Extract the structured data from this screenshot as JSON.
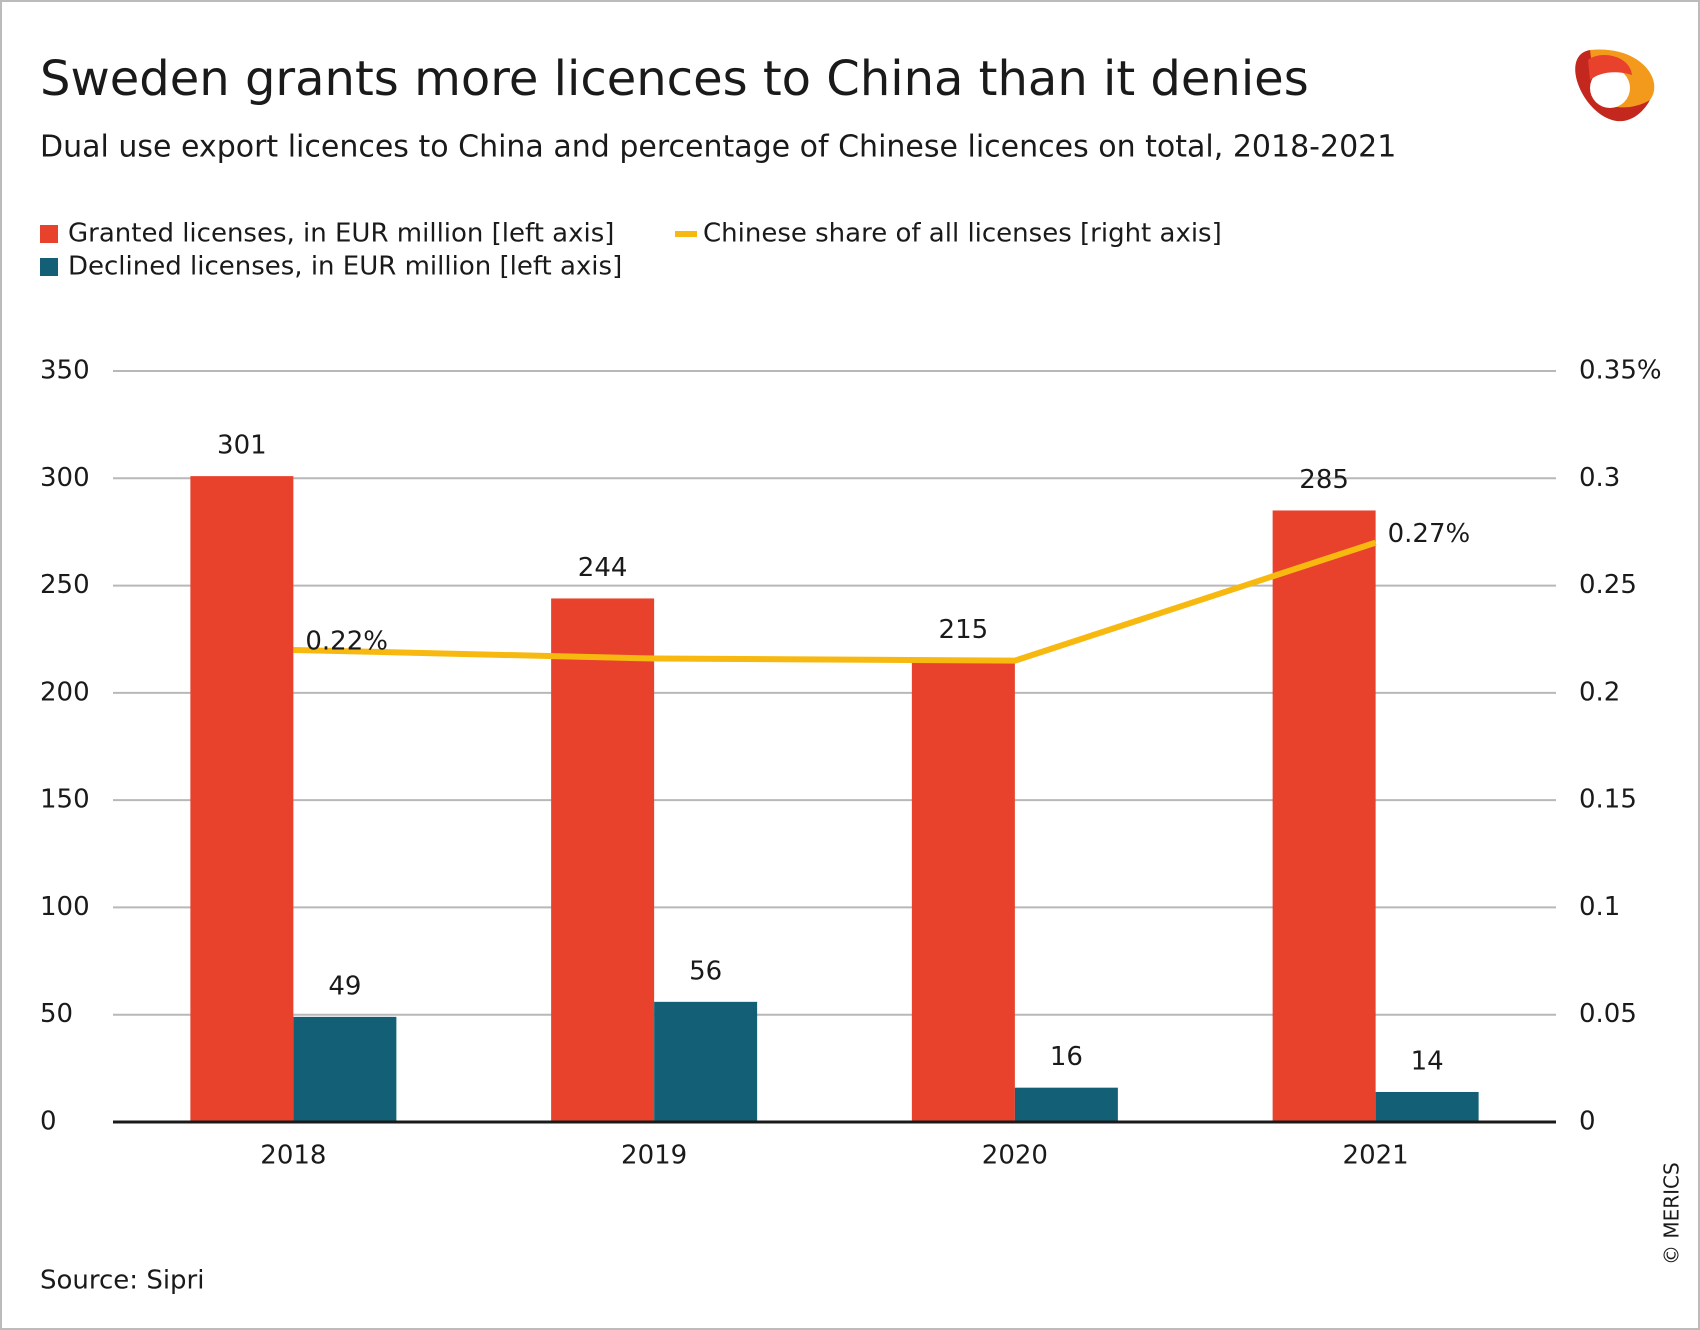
{
  "chart_data": {
    "type": "bar_line",
    "title": "Sweden grants more licences to China than it denies",
    "subtitle": "Dual use export licences to China and percentage of Chinese licences on total, 2018-2021",
    "categories": [
      "2018",
      "2019",
      "2020",
      "2021"
    ],
    "series": [
      {
        "name": "Granted licenses, in EUR million [left axis]",
        "type": "bar",
        "color": "#e8412c",
        "values": [
          301,
          244,
          215,
          285
        ]
      },
      {
        "name": "Declined licenses, in EUR million [left axis]",
        "type": "bar",
        "color": "#136076",
        "values": [
          49,
          56,
          16,
          14
        ]
      },
      {
        "name": "Chinese share of all licenses [right axis]",
        "type": "line",
        "axis": "y2",
        "color": "#f7b90f",
        "values": [
          0.22,
          0.216,
          0.215,
          0.27
        ],
        "value_labels": [
          "0.22%",
          null,
          null,
          "0.27%"
        ]
      }
    ],
    "ylim": [
      0,
      350
    ],
    "yticks": [
      0,
      50,
      100,
      150,
      200,
      250,
      300,
      350
    ],
    "y2lim": [
      0,
      0.35
    ],
    "y2ticks": [
      0,
      0.05,
      0.1,
      0.15,
      0.2,
      0.25,
      0.3,
      {
        "value": 0.35,
        "label": "0.35%"
      }
    ],
    "grid": true,
    "source": "Source: Sipri",
    "credit": "© MERICS"
  }
}
